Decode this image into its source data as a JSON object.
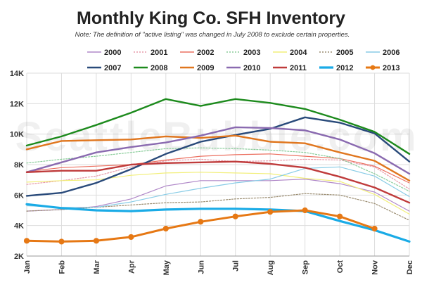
{
  "chart_data": {
    "type": "line",
    "title": "Monthly King Co. SFH Inventory",
    "subtitle": "Note: The definition of \"active listing\" was changed in July 2008 to exclude certain properties.",
    "watermark": "SeattleBubble.com",
    "xlabel": "",
    "ylabel": "",
    "categories": [
      "Jan",
      "Feb",
      "Mar",
      "Apr",
      "May",
      "Jun",
      "Jul",
      "Aug",
      "Sep",
      "Oct",
      "Nov",
      "Dec"
    ],
    "ylim": [
      2000,
      14000
    ],
    "yticks": [
      2000,
      4000,
      6000,
      8000,
      10000,
      12000,
      14000
    ],
    "ytick_labels": [
      "2K",
      "4K",
      "6K",
      "8K",
      "10K",
      "12K",
      "14K"
    ],
    "grid": true,
    "legend": "top",
    "series": [
      {
        "name": "2000",
        "color": "#b088c8",
        "style": "thin",
        "values": [
          4950,
          5050,
          5250,
          5750,
          6600,
          6950,
          6950,
          6950,
          7050,
          6750,
          6200,
          4950
        ]
      },
      {
        "name": "2001",
        "color": "#e79aa8",
        "style": "dotted",
        "values": [
          6700,
          6950,
          7250,
          7850,
          8250,
          8350,
          8200,
          8250,
          8350,
          8300,
          7850,
          6400
        ]
      },
      {
        "name": "2002",
        "color": "#ec7060",
        "style": "thin",
        "values": [
          7550,
          7800,
          7900,
          8000,
          8300,
          8550,
          8650,
          8700,
          8550,
          8400,
          7900,
          6800
        ]
      },
      {
        "name": "2003",
        "color": "#88cc99",
        "style": "dotted",
        "values": [
          8100,
          8350,
          8550,
          8800,
          9050,
          9100,
          9050,
          8950,
          8800,
          8400,
          7400,
          6250
        ]
      },
      {
        "name": "2004",
        "color": "#f2ef7a",
        "style": "thin",
        "values": [
          6850,
          6950,
          7000,
          7300,
          7450,
          7500,
          7450,
          7400,
          7100,
          6900,
          6050,
          4750
        ]
      },
      {
        "name": "2005",
        "color": "#9a8c70",
        "style": "dotted",
        "values": [
          4950,
          5050,
          5200,
          5350,
          5500,
          5550,
          5750,
          5850,
          6100,
          6000,
          5450,
          4350
        ]
      },
      {
        "name": "2006",
        "color": "#88cce6",
        "style": "thin",
        "values": [
          5300,
          5200,
          5200,
          5550,
          6050,
          6450,
          6800,
          7050,
          7750,
          7850,
          7250,
          5900
        ]
      },
      {
        "name": "2007",
        "color": "#294a7a",
        "style": "bold",
        "values": [
          5950,
          6150,
          6800,
          7700,
          8700,
          9500,
          9950,
          10350,
          11100,
          10750,
          10050,
          8200
        ]
      },
      {
        "name": "2008",
        "color": "#1c8a1c",
        "style": "bold",
        "values": [
          9250,
          9850,
          10600,
          11400,
          12300,
          11850,
          12300,
          12050,
          11650,
          10950,
          10150,
          8700
        ]
      },
      {
        "name": "2009",
        "color": "#e0761e",
        "style": "bold",
        "values": [
          9000,
          9550,
          9600,
          9650,
          9850,
          9750,
          9900,
          9500,
          9400,
          8800,
          8250,
          6950
        ]
      },
      {
        "name": "2010",
        "color": "#8a6ab0",
        "style": "bold",
        "values": [
          7500,
          8150,
          8800,
          9150,
          9450,
          9900,
          10450,
          10400,
          10250,
          9650,
          8750,
          7400
        ]
      },
      {
        "name": "2011",
        "color": "#bf3b3b",
        "style": "bold",
        "values": [
          7500,
          7600,
          7600,
          8000,
          8100,
          8150,
          8200,
          8050,
          7800,
          7200,
          6500,
          5500
        ]
      },
      {
        "name": "2012",
        "color": "#1aabe6",
        "style": "heavy",
        "values": [
          5400,
          5150,
          5000,
          4950,
          5050,
          5100,
          5100,
          5050,
          4950,
          4300,
          3700,
          2950
        ]
      },
      {
        "name": "2013",
        "color": "#e67814",
        "style": "marker",
        "values": [
          3000,
          2950,
          3000,
          3250,
          3800,
          4250,
          4600,
          4900,
          5000,
          4600,
          3800,
          null
        ]
      }
    ]
  }
}
